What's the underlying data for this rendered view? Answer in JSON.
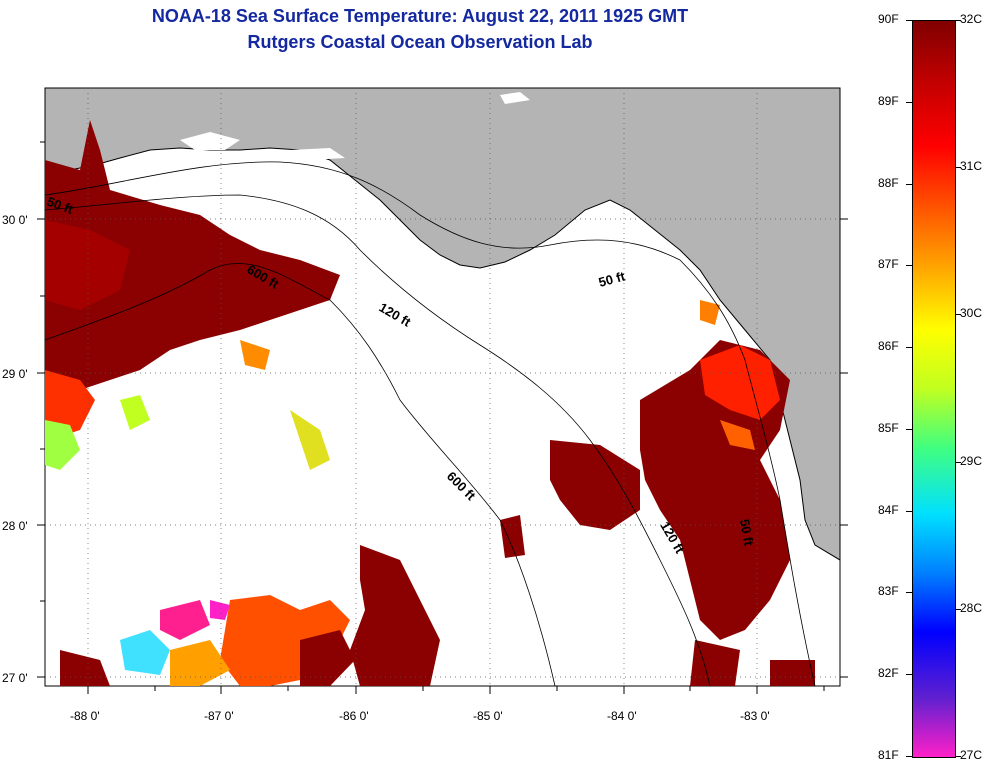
{
  "title": {
    "line1": "NOAA-18 Sea Surface Temperature:  August 22, 2011 1925 GMT",
    "line2": "Rutgers Coastal Ocean Observation Lab"
  },
  "map": {
    "lon_labels": [
      "-88 0'",
      "-87 0'",
      "-86 0'",
      "-85 0'",
      "-84 0'",
      "-83 0'"
    ],
    "lat_labels": [
      "30 0'",
      "29 0'",
      "28 0'",
      "27 0'"
    ],
    "contour_labels": [
      "50 ft",
      "600 ft",
      "120 ft",
      "50 ft",
      "600 ft",
      "120 ft",
      "50 ft"
    ],
    "colors": {
      "land": "#b4b4b4",
      "sea_nodata": "#ffffff",
      "coastline": "#000000"
    }
  },
  "colorbar": {
    "f_labels": [
      "90F",
      "89F",
      "88F",
      "87F",
      "86F",
      "85F",
      "84F",
      "83F",
      "82F",
      "81F"
    ],
    "c_labels": [
      "32C",
      "31C",
      "30C",
      "29C",
      "28C",
      "27C"
    ],
    "colors": [
      "#ff20c8",
      "#6020d0",
      "#0000ff",
      "#0080ff",
      "#00e0ff",
      "#40ff80",
      "#c0ff20",
      "#ffff00",
      "#ffa000",
      "#ff5000",
      "#ff0000",
      "#c00000",
      "#800000"
    ]
  }
}
